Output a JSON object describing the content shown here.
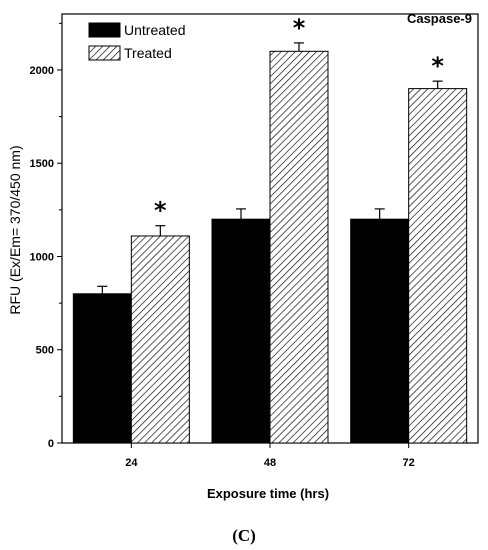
{
  "chart_data": {
    "type": "bar",
    "title": "Caspase-9",
    "xlabel": "Exposure time (hrs)",
    "ylabel": "RFU (Ex/Em= 370/450 nm)",
    "categories": [
      "24",
      "48",
      "72"
    ],
    "ylim": [
      0,
      2300
    ],
    "yticks": [
      "0",
      "500",
      "1000",
      "1500",
      "2000"
    ],
    "legend_position": "top-left",
    "series": [
      {
        "name": "Untreated",
        "values": [
          800,
          1200,
          1200
        ],
        "errors": [
          40,
          55,
          55
        ],
        "fill": "solid",
        "color": "#000000"
      },
      {
        "name": "Treated",
        "values": [
          1110,
          2100,
          1900
        ],
        "errors": [
          55,
          45,
          40
        ],
        "fill": "hatched",
        "color": "#000000"
      }
    ],
    "significance_marker": "*",
    "significant_series": "Treated",
    "grid": false
  },
  "panel_label": "(C)"
}
